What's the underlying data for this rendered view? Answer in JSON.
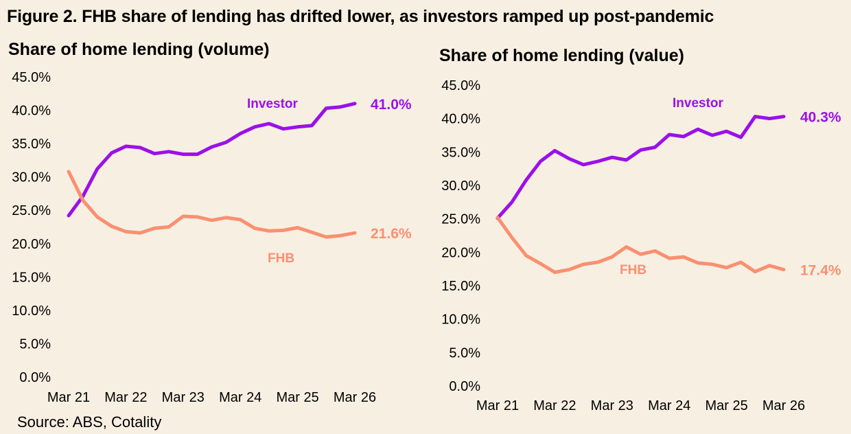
{
  "figure_title": "Figure 2. FHB share of lending has drifted lower, as investors ramped up post-pandemic",
  "source": "Source: ABS, Cotality",
  "colors": {
    "investor": "#9b10e8",
    "fhb": "#f99070"
  },
  "chart_data": [
    {
      "type": "line",
      "title": "Share of home lending (volume)",
      "xlabel": "",
      "ylabel": "",
      "x_tick_labels": [
        "Mar 21",
        "Mar 22",
        "Mar 23",
        "Mar 24",
        "Mar 25",
        "Mar 26"
      ],
      "y_tick_labels": [
        "0.0%",
        "5.0%",
        "10.0%",
        "15.0%",
        "20.0%",
        "25.0%",
        "30.0%",
        "35.0%",
        "40.0%",
        "45.0%"
      ],
      "ylim": [
        0,
        45
      ],
      "x_quarters": [
        "Mar 21",
        "Jun 21",
        "Sep 21",
        "Dec 21",
        "Mar 22",
        "Jun 22",
        "Sep 22",
        "Dec 22",
        "Mar 23",
        "Jun 23",
        "Sep 23",
        "Dec 23",
        "Mar 24",
        "Jun 24",
        "Sep 24",
        "Dec 24",
        "Mar 25",
        "Jun 25",
        "Sep 25",
        "Dec 25",
        "Mar 26"
      ],
      "series": [
        {
          "name": "Investor",
          "end_label": "41.0%",
          "values": [
            24.2,
            27.1,
            31.2,
            33.6,
            34.6,
            34.4,
            33.5,
            33.8,
            33.4,
            33.4,
            34.5,
            35.2,
            36.5,
            37.5,
            38.0,
            37.2,
            37.5,
            37.7,
            40.3,
            40.5,
            41.0
          ]
        },
        {
          "name": "FHB",
          "end_label": "21.6%",
          "values": [
            30.8,
            26.5,
            24.0,
            22.6,
            21.8,
            21.6,
            22.3,
            22.5,
            24.1,
            24.0,
            23.5,
            23.9,
            23.6,
            22.3,
            21.9,
            22.0,
            22.4,
            21.7,
            21.0,
            21.2,
            21.6
          ]
        }
      ]
    },
    {
      "type": "line",
      "title": "Share of home lending (value)",
      "xlabel": "",
      "ylabel": "",
      "x_tick_labels": [
        "Mar 21",
        "Mar 22",
        "Mar 23",
        "Mar 24",
        "Mar 25",
        "Mar 26"
      ],
      "y_tick_labels": [
        "0.0%",
        "5.0%",
        "10.0%",
        "15.0%",
        "20.0%",
        "25.0%",
        "30.0%",
        "35.0%",
        "40.0%",
        "45.0%"
      ],
      "ylim": [
        0,
        45
      ],
      "x_quarters": [
        "Mar 21",
        "Jun 21",
        "Sep 21",
        "Dec 21",
        "Mar 22",
        "Jun 22",
        "Sep 22",
        "Dec 22",
        "Mar 23",
        "Jun 23",
        "Sep 23",
        "Dec 23",
        "Mar 24",
        "Jun 24",
        "Sep 24",
        "Dec 24",
        "Mar 25",
        "Jun 25",
        "Sep 25",
        "Dec 25",
        "Mar 26"
      ],
      "series": [
        {
          "name": "Investor",
          "end_label": "40.3%",
          "values": [
            25.1,
            27.5,
            30.8,
            33.6,
            35.2,
            34.0,
            33.1,
            33.6,
            34.2,
            33.8,
            35.3,
            35.7,
            37.6,
            37.3,
            38.4,
            37.5,
            38.1,
            37.2,
            40.3,
            40.0,
            40.3
          ]
        },
        {
          "name": "FHB",
          "end_label": "17.4%",
          "values": [
            25.2,
            22.2,
            19.5,
            18.3,
            17.0,
            17.4,
            18.2,
            18.5,
            19.3,
            20.8,
            19.7,
            20.2,
            19.1,
            19.3,
            18.4,
            18.2,
            17.7,
            18.5,
            17.1,
            18.0,
            17.4
          ]
        }
      ]
    }
  ]
}
